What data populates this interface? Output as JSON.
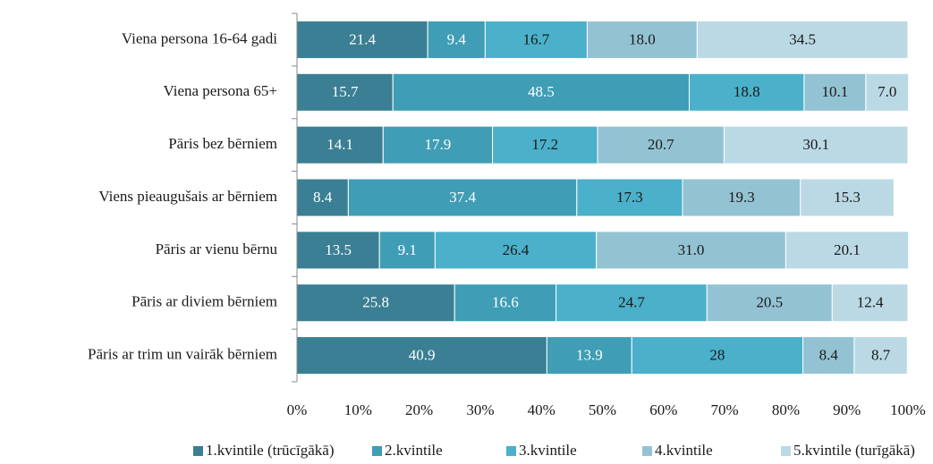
{
  "chart_data": {
    "type": "stacked_barh",
    "categories": [
      "Viena persona 16-64 gadi",
      "Viena persona 65+",
      "Pāris bez bērniem",
      "Viens pieaugušais ar bērniem",
      "Pāris ar vienu bērnu",
      "Pāris ar diviem bērniem",
      "Pāris ar trim un vairāk bērniem"
    ],
    "series": [
      {
        "name": "1.kvintile (trūcīgākā)",
        "color": "#3a7f93",
        "label_color": "#ffffff",
        "values": [
          21.4,
          15.7,
          14.1,
          8.4,
          13.5,
          25.8,
          40.9
        ],
        "value_labels": [
          "21.4",
          "15.7",
          "14.1",
          "8.4",
          "13.5",
          "25.8",
          "40.9"
        ]
      },
      {
        "name": "2.kvintile",
        "color": "#3f9db5",
        "label_color": "#ffffff",
        "values": [
          9.4,
          48.5,
          17.9,
          37.4,
          9.1,
          16.6,
          13.9
        ],
        "value_labels": [
          "9.4",
          "48.5",
          "17.9",
          "37.4",
          "9.1",
          "16.6",
          "13.9"
        ]
      },
      {
        "name": "3.kvintile",
        "color": "#4bb0ca",
        "label_color": "#1a1a1a",
        "values": [
          16.7,
          18.8,
          17.2,
          17.3,
          26.4,
          24.7,
          28
        ],
        "value_labels": [
          "16.7",
          "18.8",
          "17.2",
          "17.3",
          "26.4",
          "24.7",
          "28"
        ]
      },
      {
        "name": "4.kvintile",
        "color": "#93c3d3",
        "label_color": "#1a1a1a",
        "values": [
          18.0,
          10.1,
          20.7,
          19.3,
          31.0,
          20.5,
          8.4
        ],
        "value_labels": [
          "18.0",
          "10.1",
          "20.7",
          "19.3",
          "31.0",
          "20.5",
          "8.4"
        ]
      },
      {
        "name": "5.kvintile (turīgākā)",
        "color": "#bad9e5",
        "label_color": "#1a1a1a",
        "values": [
          34.5,
          7.0,
          30.1,
          15.3,
          20.1,
          12.4,
          8.7
        ],
        "value_labels": [
          "34.5",
          "7.0",
          "30.1",
          "15.3",
          "20.1",
          "12.4",
          "8.7"
        ]
      }
    ],
    "xlim": [
      0,
      100
    ],
    "xticks": [
      {
        "value": 0,
        "label": "0%"
      },
      {
        "value": 10,
        "label": "10%"
      },
      {
        "value": 20,
        "label": "20%"
      },
      {
        "value": 30,
        "label": "30%"
      },
      {
        "value": 40,
        "label": "40%"
      },
      {
        "value": 50,
        "label": "50%"
      },
      {
        "value": 60,
        "label": "60%"
      },
      {
        "value": 70,
        "label": "70%"
      },
      {
        "value": 80,
        "label": "80%"
      },
      {
        "value": 90,
        "label": "90%"
      },
      {
        "value": 100,
        "label": "100%"
      }
    ],
    "legend": "bottom"
  }
}
